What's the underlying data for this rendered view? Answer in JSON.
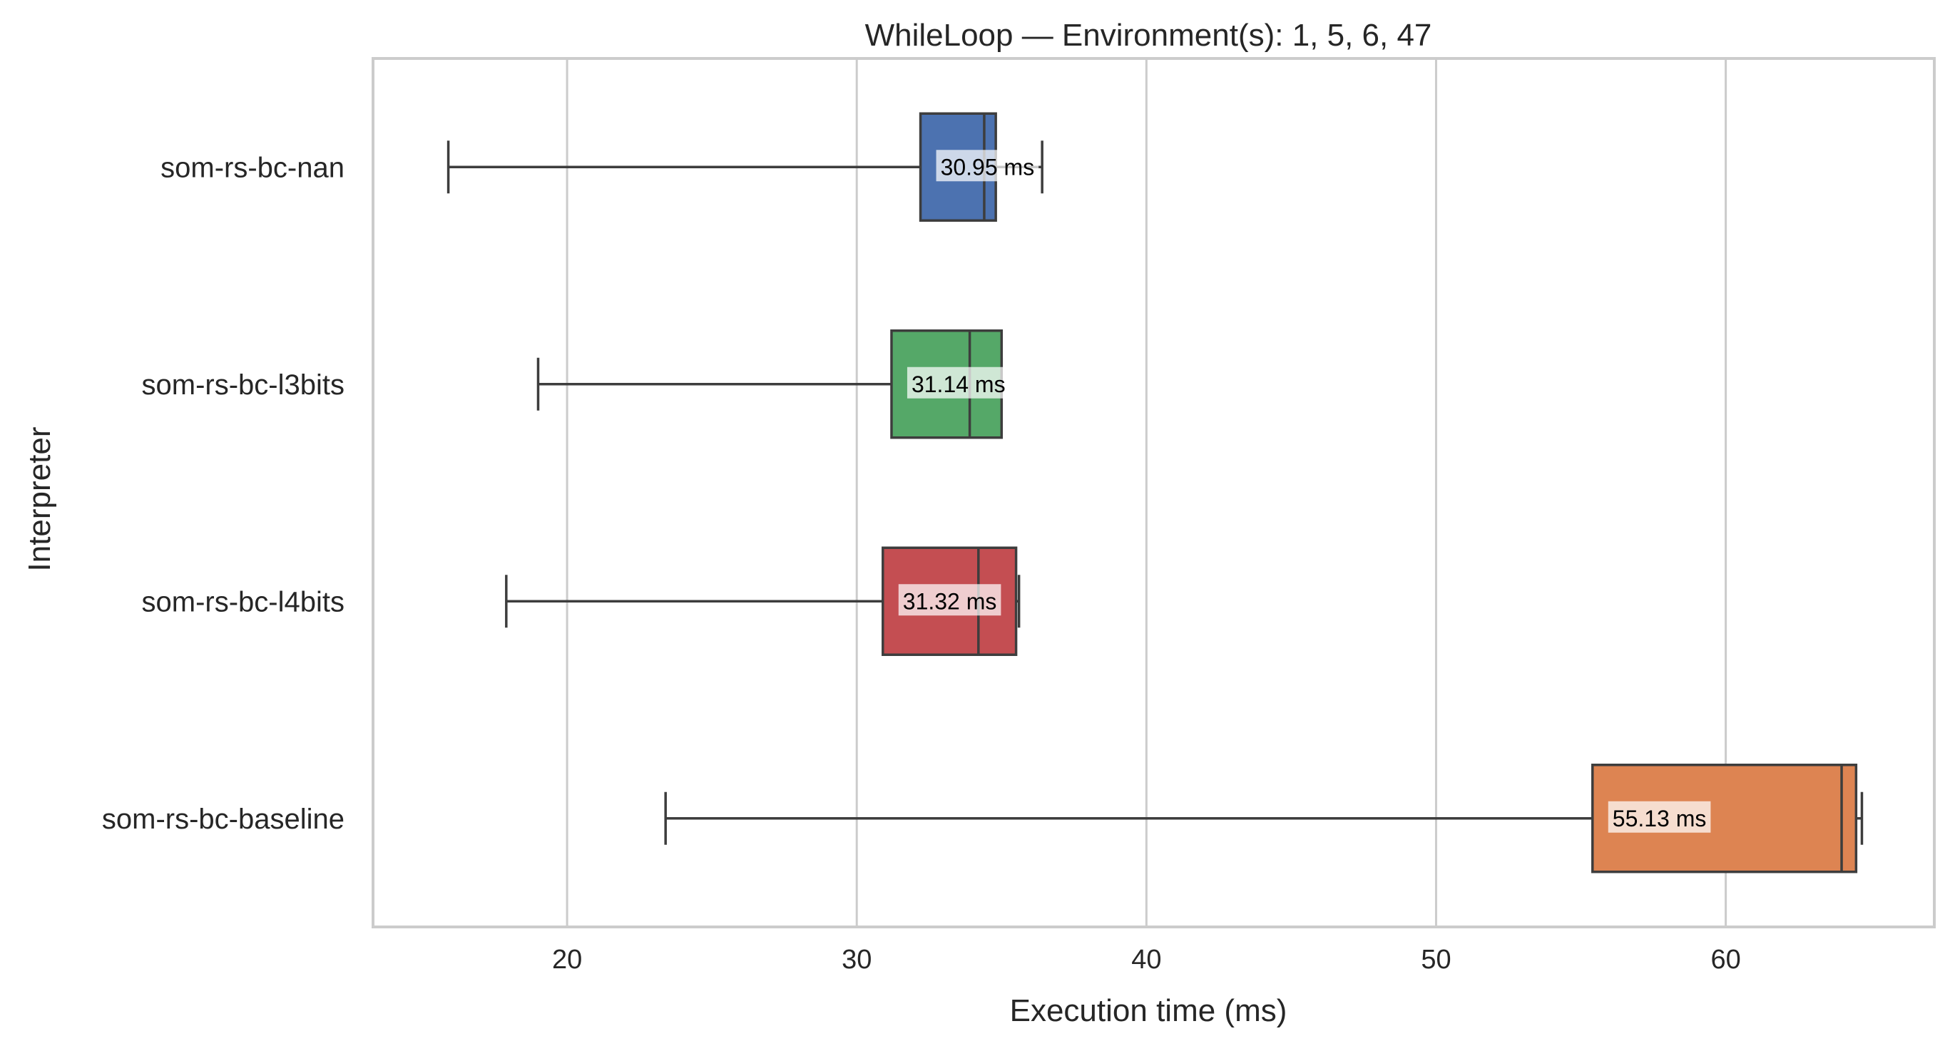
{
  "chart_data": {
    "type": "box",
    "orientation": "horizontal",
    "title": "WhileLoop — Environment(s): 1, 5, 6, 47",
    "xlabel": "Execution time (ms)",
    "ylabel": "Interpreter",
    "xlim": [
      13.3,
      67.2
    ],
    "xticks": [
      20,
      30,
      40,
      50,
      60
    ],
    "grid": "vertical",
    "categories": [
      "som-rs-bc-nan",
      "som-rs-bc-l3bits",
      "som-rs-bc-l4bits",
      "som-rs-bc-baseline"
    ],
    "colors": [
      "#4c72b0",
      "#55a868",
      "#c44e52",
      "#dd8452"
    ],
    "series": [
      {
        "name": "som-rs-bc-nan",
        "whisker_low": 15.9,
        "q1": 32.2,
        "median": 34.4,
        "q3": 34.8,
        "whisker_high": 36.4,
        "mean_label": "30.95 ms",
        "mean": 30.95
      },
      {
        "name": "som-rs-bc-l3bits",
        "whisker_low": 19.0,
        "q1": 31.2,
        "median": 33.9,
        "q3": 35.0,
        "whisker_high": 35.0,
        "mean_label": "31.14 ms",
        "mean": 31.14
      },
      {
        "name": "som-rs-bc-l4bits",
        "whisker_low": 17.9,
        "q1": 30.9,
        "median": 34.2,
        "q3": 35.5,
        "whisker_high": 35.6,
        "mean_label": "31.32 ms",
        "mean": 31.32
      },
      {
        "name": "som-rs-bc-baseline",
        "whisker_low": 23.4,
        "q1": 55.4,
        "median": 64.0,
        "q3": 64.5,
        "whisker_high": 64.7,
        "mean_label": "55.13 ms",
        "mean": 55.13
      }
    ]
  }
}
